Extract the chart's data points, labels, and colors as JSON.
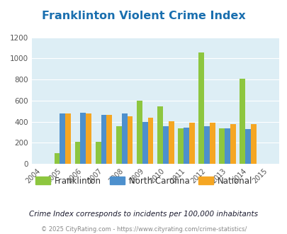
{
  "title": "Franklinton Violent Crime Index",
  "years": [
    2005,
    2006,
    2007,
    2008,
    2009,
    2010,
    2011,
    2012,
    2013,
    2014
  ],
  "franklinton": [
    100,
    210,
    210,
    355,
    598,
    548,
    340,
    1060,
    340,
    810
  ],
  "north_carolina": [
    475,
    485,
    465,
    475,
    400,
    358,
    345,
    355,
    337,
    330
  ],
  "national": [
    475,
    475,
    465,
    452,
    435,
    403,
    390,
    390,
    375,
    375
  ],
  "franklinton_color": "#8dc63f",
  "nc_color": "#4d90cd",
  "national_color": "#f5a623",
  "bg_color": "#ddeef5",
  "title_color": "#1a6faf",
  "ylim": [
    0,
    1200
  ],
  "yticks": [
    0,
    200,
    400,
    600,
    800,
    1000,
    1200
  ],
  "xlim": [
    2003.5,
    2015.5
  ],
  "xticks": [
    2004,
    2005,
    2006,
    2007,
    2008,
    2009,
    2010,
    2011,
    2012,
    2013,
    2014,
    2015
  ],
  "legend_labels": [
    "Franklinton",
    "North Carolina",
    "National"
  ],
  "footnote1": "Crime Index corresponds to incidents per 100,000 inhabitants",
  "footnote2": "© 2025 CityRating.com - https://www.cityrating.com/crime-statistics/",
  "bar_width": 0.27
}
